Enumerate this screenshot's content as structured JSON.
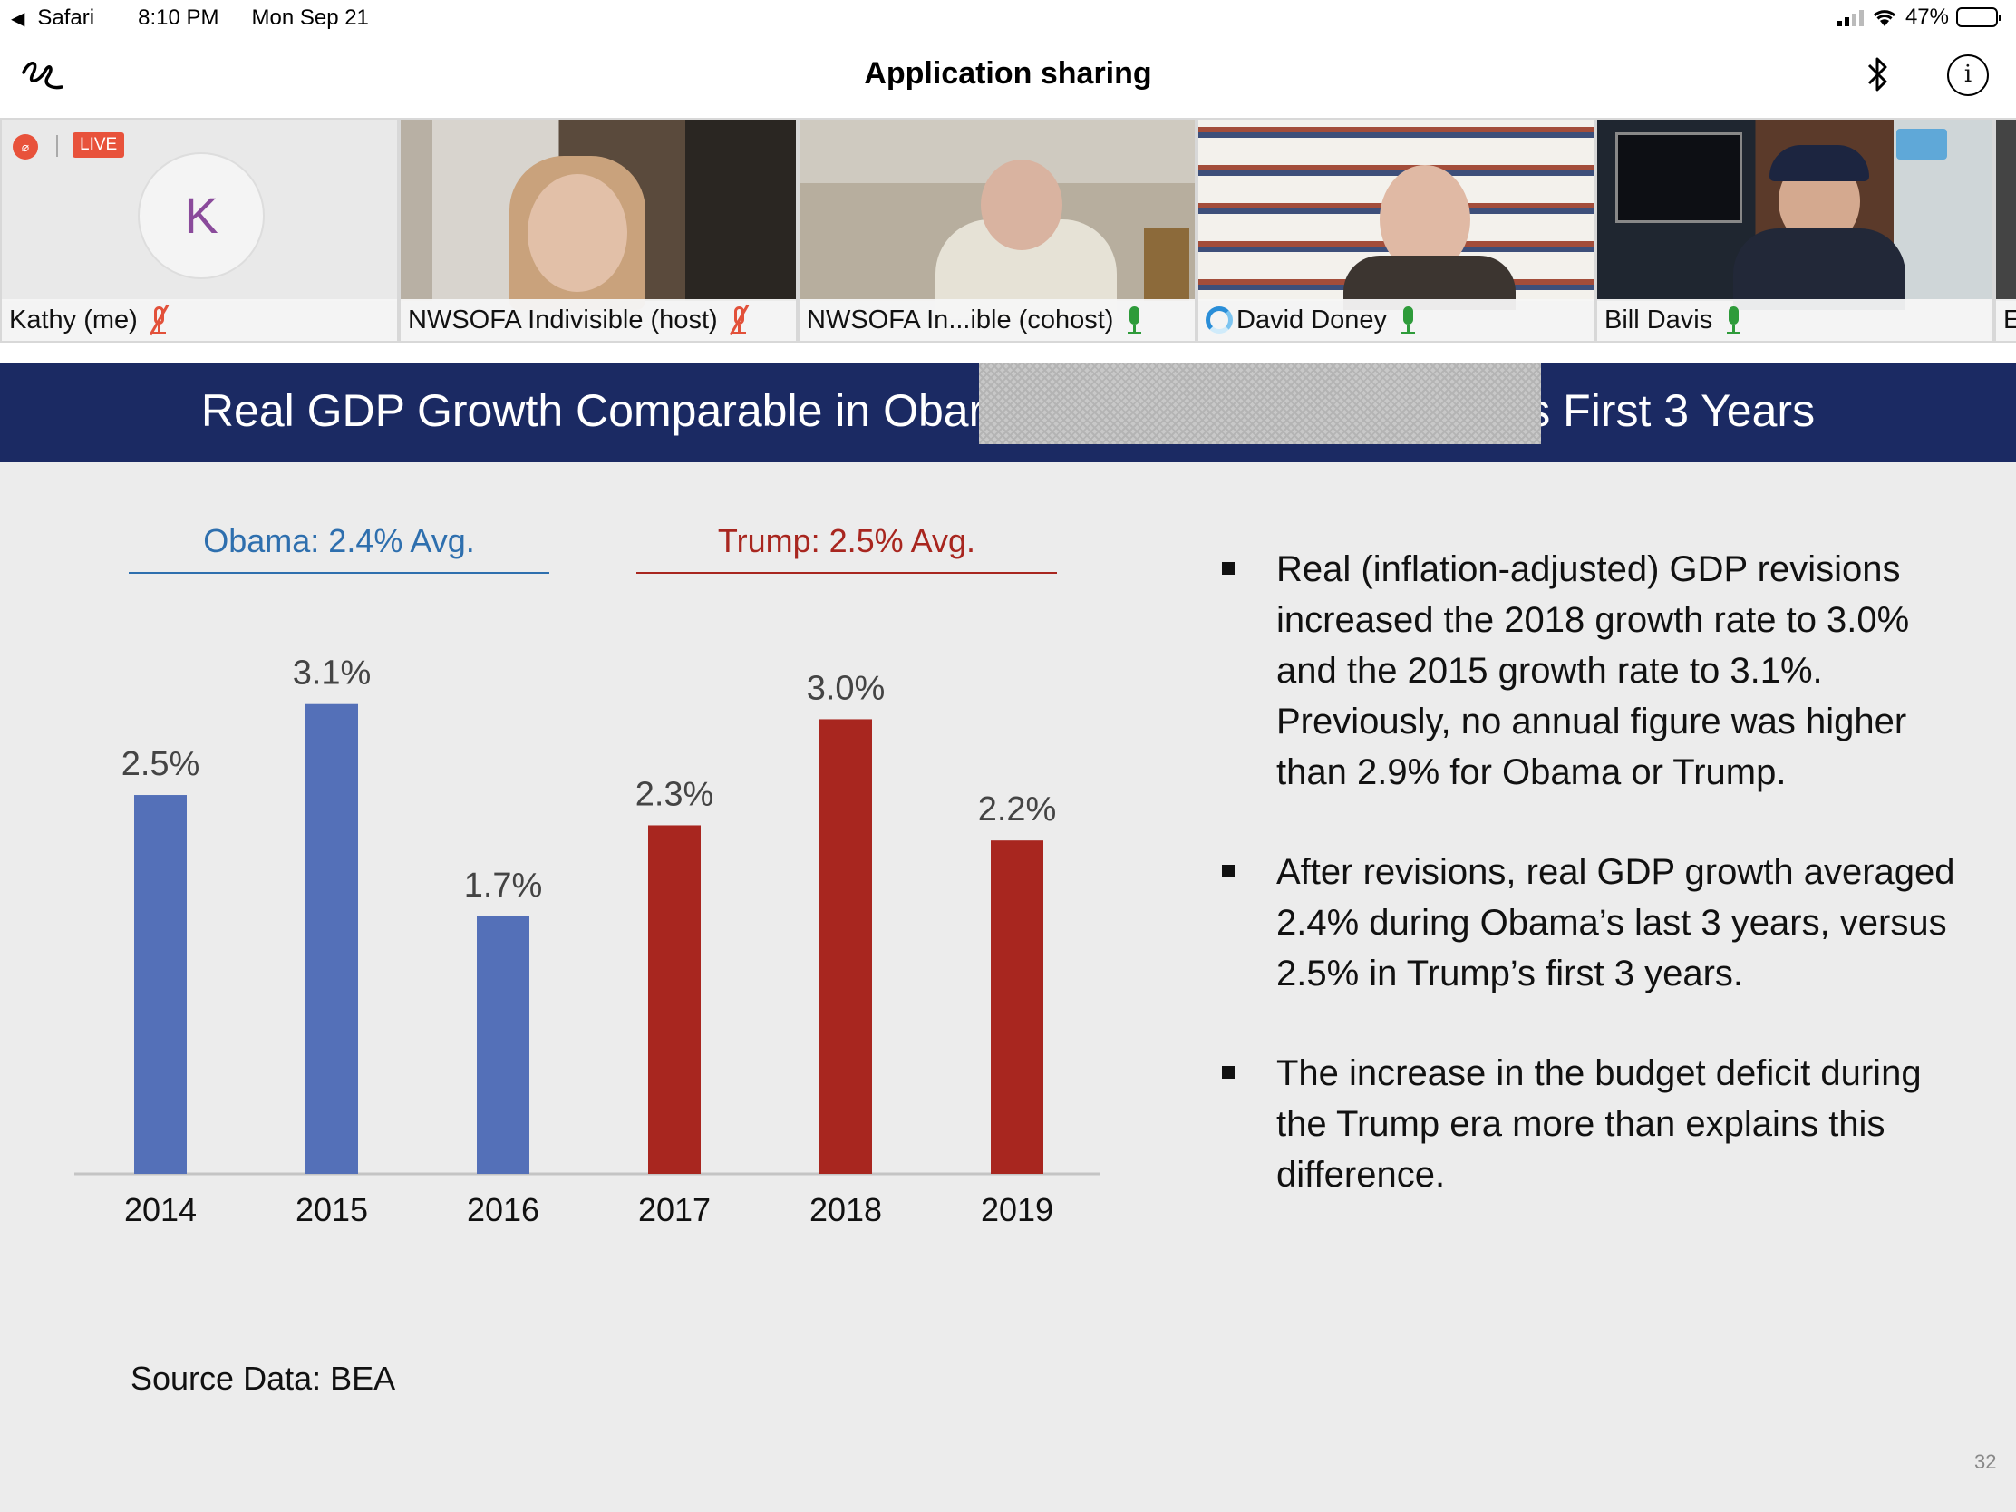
{
  "status_bar": {
    "back_app": "Safari",
    "time": "8:10 PM",
    "date": "Mon Sep 21",
    "battery": "47%",
    "battery_level": 0.47
  },
  "nav": {
    "title": "Application sharing"
  },
  "participants": [
    {
      "name": "Kathy (me)",
      "mic": "muted",
      "avatar_letter": "K",
      "live_badge": "LIVE"
    },
    {
      "name": "NWSOFA Indivisible (host)",
      "mic": "muted"
    },
    {
      "name": "NWSOFA In...ible (cohost)",
      "mic": "on"
    },
    {
      "name": "David Doney",
      "mic": "on"
    },
    {
      "name": "Bill Davis",
      "mic": "on"
    },
    {
      "name": "E"
    }
  ],
  "slide": {
    "title_left": "Real GDP Growth Comparable in Obar",
    "title_right": "s First 3 Years",
    "obama_label": "Obama:  2.4% Avg.",
    "trump_label": "Trump:  2.5% Avg.",
    "bullets": [
      "Real (inflation-adjusted) GDP revisions increased the 2018 growth rate to 3.0% and the 2015 growth rate to 3.1%.  Previously, no annual figure was higher than 2.9% for Obama or Trump.",
      "After revisions, real GDP growth averaged 2.4% during Obama’s last 3 years, versus 2.5% in Trump’s first 3 years.",
      "The increase in the budget deficit during the Trump era more than explains this difference."
    ],
    "source": "Source Data:  BEA",
    "slide_number": "32",
    "colors": {
      "obama": "#5470b8",
      "trump": "#a8261f",
      "obama_text": "#2e6fae",
      "trump_text": "#a8261f",
      "header_bg": "#1b2a63"
    }
  },
  "chart_data": {
    "type": "bar",
    "categories": [
      "2014",
      "2015",
      "2016",
      "2017",
      "2018",
      "2019"
    ],
    "values": [
      2.5,
      3.1,
      1.7,
      2.3,
      3.0,
      2.2
    ],
    "data_labels": [
      "2.5%",
      "3.1%",
      "1.7%",
      "2.3%",
      "3.0%",
      "2.2%"
    ],
    "bar_groups": [
      "obama",
      "obama",
      "obama",
      "trump",
      "trump",
      "trump"
    ],
    "ylim": [
      0,
      3.2
    ],
    "grid": false,
    "legend": "none"
  }
}
